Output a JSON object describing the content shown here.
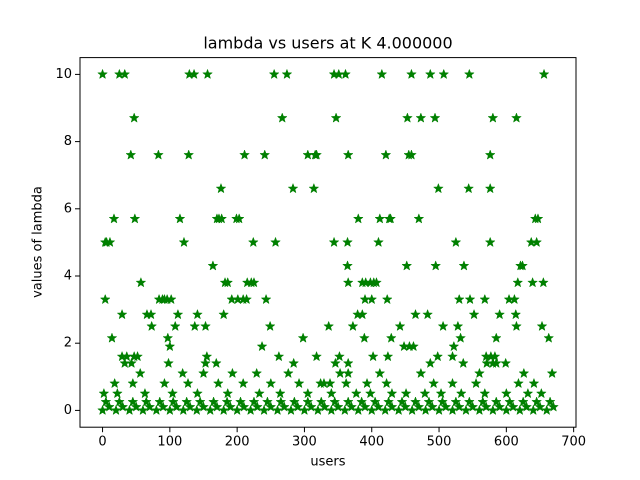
{
  "chart_data": {
    "type": "scatter",
    "title": "lambda vs users at K 4.000000",
    "xlabel": "users",
    "ylabel": "values of lambda",
    "color": "#008000",
    "xlim": [
      -33.5,
      703.5
    ],
    "ylim": [
      -0.5,
      10.5
    ],
    "xticks": [
      0,
      100,
      200,
      300,
      400,
      500,
      600,
      700
    ],
    "yticks": [
      0,
      2,
      4,
      6,
      8,
      10
    ],
    "x": [
      0,
      25,
      33,
      129,
      136,
      156,
      255,
      274,
      344,
      351,
      361,
      415,
      459,
      487,
      507,
      545,
      656,
      47,
      267,
      347,
      453,
      473,
      494,
      580,
      615,
      42,
      83,
      128,
      211,
      241,
      305,
      316,
      318,
      365,
      421,
      455,
      459,
      576,
      176,
      283,
      314,
      499,
      544,
      576,
      17,
      48,
      115,
      170,
      173,
      177,
      199,
      203,
      380,
      412,
      426,
      428,
      470,
      643,
      647,
      4,
      6,
      11,
      121,
      224,
      257,
      344,
      364,
      410,
      525,
      576,
      637,
      645,
      164,
      364,
      452,
      495,
      537,
      621,
      624,
      57,
      182,
      186,
      215,
      221,
      225,
      365,
      386,
      391,
      398,
      403,
      407,
      617,
      639,
      655,
      4,
      84,
      89,
      92,
      96,
      102,
      192,
      201,
      209,
      214,
      243,
      390,
      400,
      423,
      530,
      546,
      568,
      604,
      612,
      29,
      66,
      72,
      112,
      141,
      180,
      379,
      386,
      465,
      483,
      552,
      590,
      614,
      73,
      108,
      137,
      153,
      249,
      336,
      372,
      442,
      506,
      528,
      615,
      653,
      14,
      97,
      298,
      389,
      429,
      532,
      585,
      663,
      100,
      237,
      448,
      456,
      462,
      522,
      29,
      36,
      47,
      52,
      155,
      262,
      318,
      352,
      402,
      424,
      498,
      520,
      570,
      577,
      583,
      33,
      43,
      98,
      153,
      169,
      284,
      346,
      365,
      487,
      536,
      571,
      580,
      585,
      599,
      56,
      119,
      150,
      193,
      229,
      276,
      353,
      365,
      412,
      473,
      560,
      626,
      668,
      18,
      45,
      92,
      127,
      172,
      209,
      250,
      292,
      324,
      329,
      338,
      362,
      393,
      422,
      492,
      520,
      555,
      618,
      641,
      2,
      22,
      63,
      104,
      141,
      186,
      233,
      264,
      305,
      340,
      377,
      398,
      430,
      451,
      479,
      503,
      533,
      568,
      600,
      632,
      652,
      5,
      25,
      45,
      65,
      85,
      105,
      125,
      145,
      165,
      185,
      205,
      225,
      245,
      265,
      285,
      305,
      325,
      345,
      365,
      385,
      405,
      425,
      445,
      465,
      485,
      505,
      525,
      545,
      565,
      585,
      605,
      625,
      645,
      665,
      0,
      10,
      20,
      30,
      40,
      50,
      60,
      70,
      80,
      90,
      100,
      110,
      120,
      130,
      140,
      150,
      160,
      170,
      180,
      190,
      200,
      210,
      220,
      230,
      240,
      250,
      260,
      270,
      280,
      290,
      300,
      310,
      320,
      330,
      340,
      350,
      360,
      370,
      380,
      390,
      400,
      410,
      420,
      430,
      440,
      450,
      460,
      470,
      480,
      490,
      500,
      510,
      520,
      530,
      540,
      550,
      560,
      570,
      580,
      590,
      600,
      610,
      620,
      630,
      640,
      650,
      660,
      670
    ],
    "values": [
      10,
      10,
      10,
      10,
      10,
      10,
      10,
      10,
      10,
      10,
      10,
      10,
      10,
      10,
      10,
      10,
      10,
      8.7,
      8.7,
      8.7,
      8.7,
      8.7,
      8.7,
      8.7,
      8.7,
      7.6,
      7.6,
      7.6,
      7.6,
      7.6,
      7.6,
      7.6,
      7.6,
      7.6,
      7.6,
      7.6,
      7.6,
      7.6,
      6.6,
      6.6,
      6.6,
      6.6,
      6.6,
      6.6,
      5.7,
      5.7,
      5.7,
      5.7,
      5.7,
      5.7,
      5.7,
      5.7,
      5.7,
      5.7,
      5.7,
      5.7,
      5.7,
      5.7,
      5.7,
      5,
      5,
      5,
      5,
      5,
      5,
      5,
      5,
      5,
      5,
      5,
      5,
      5,
      4.3,
      4.3,
      4.3,
      4.3,
      4.3,
      4.3,
      4.3,
      3.8,
      3.8,
      3.8,
      3.8,
      3.8,
      3.8,
      3.8,
      3.8,
      3.8,
      3.8,
      3.8,
      3.8,
      3.8,
      3.8,
      3.8,
      3.3,
      3.3,
      3.3,
      3.3,
      3.3,
      3.3,
      3.3,
      3.3,
      3.3,
      3.3,
      3.3,
      3.3,
      3.3,
      3.3,
      3.3,
      3.3,
      3.3,
      3.3,
      3.3,
      2.85,
      2.85,
      2.85,
      2.85,
      2.85,
      2.85,
      2.85,
      2.85,
      2.85,
      2.85,
      2.85,
      2.85,
      2.85,
      2.5,
      2.5,
      2.5,
      2.5,
      2.5,
      2.5,
      2.5,
      2.5,
      2.5,
      2.5,
      2.5,
      2.5,
      2.15,
      2.15,
      2.15,
      2.15,
      2.15,
      2.15,
      2.15,
      2.15,
      1.9,
      1.9,
      1.9,
      1.9,
      1.9,
      1.9,
      1.6,
      1.6,
      1.6,
      1.6,
      1.6,
      1.6,
      1.6,
      1.6,
      1.6,
      1.6,
      1.6,
      1.6,
      1.6,
      1.6,
      1.6,
      1.4,
      1.4,
      1.4,
      1.4,
      1.4,
      1.4,
      1.4,
      1.4,
      1.4,
      1.4,
      1.4,
      1.4,
      1.4,
      1.4,
      1.1,
      1.1,
      1.1,
      1.1,
      1.1,
      1.1,
      1.1,
      1.1,
      1.1,
      1.1,
      1.1,
      1.1,
      1.1,
      0.8,
      0.8,
      0.8,
      0.8,
      0.8,
      0.8,
      0.8,
      0.8,
      0.8,
      0.8,
      0.8,
      0.8,
      0.8,
      0.8,
      0.8,
      0.8,
      0.8,
      0.8,
      0.8,
      0.5,
      0.5,
      0.5,
      0.5,
      0.5,
      0.5,
      0.5,
      0.5,
      0.5,
      0.5,
      0.5,
      0.5,
      0.5,
      0.5,
      0.5,
      0.5,
      0.5,
      0.5,
      0.5,
      0.5,
      0.5,
      0.25,
      0.25,
      0.25,
      0.25,
      0.25,
      0.25,
      0.25,
      0.25,
      0.25,
      0.25,
      0.25,
      0.25,
      0.25,
      0.25,
      0.25,
      0.25,
      0.25,
      0.25,
      0.25,
      0.25,
      0.25,
      0.25,
      0.25,
      0.25,
      0.25,
      0.25,
      0.25,
      0.25,
      0.25,
      0.25,
      0.25,
      0.25,
      0.25,
      0.25,
      0,
      0.1,
      0,
      0.1,
      0,
      0.1,
      0,
      0.1,
      0,
      0.1,
      0,
      0.1,
      0,
      0.1,
      0,
      0.1,
      0,
      0.1,
      0,
      0.1,
      0,
      0.1,
      0,
      0.1,
      0,
      0.1,
      0,
      0.1,
      0,
      0.1,
      0,
      0.1,
      0,
      0.1,
      0,
      0.1,
      0,
      0.1,
      0,
      0.1,
      0,
      0.1,
      0,
      0.1,
      0,
      0.1,
      0,
      0.1,
      0,
      0.1,
      0,
      0.1,
      0,
      0.1,
      0,
      0.1,
      0,
      0.1,
      0,
      0.1,
      0,
      0.1,
      0,
      0.1,
      0,
      0.1,
      0,
      0.1
    ]
  }
}
